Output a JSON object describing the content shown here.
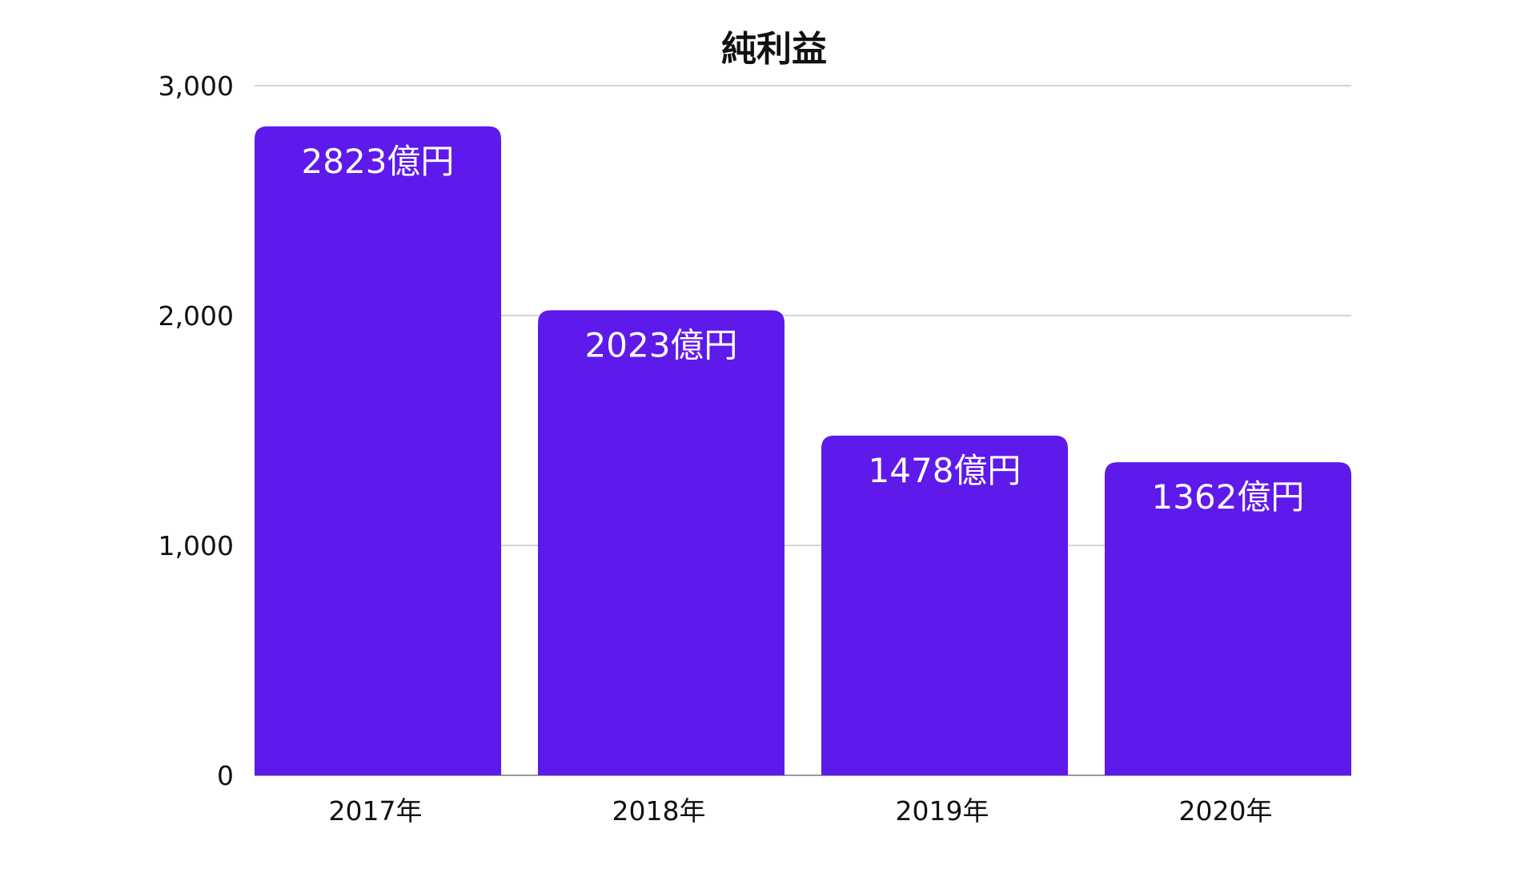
{
  "chart_data": {
    "type": "bar",
    "title": "純利益",
    "xlabel": "",
    "ylabel": "",
    "categories": [
      "2017年",
      "2018年",
      "2019年",
      "2020年"
    ],
    "values": [
      2823,
      2023,
      1478,
      1362
    ],
    "data_labels": [
      "2823億円",
      "2023億円",
      "1478億円",
      "1362億円"
    ],
    "ylim": [
      0,
      3000
    ],
    "yticks": [
      0,
      1000,
      2000,
      3000
    ],
    "ytick_labels": [
      "0",
      "1,000",
      "2,000",
      "3,000"
    ],
    "grid": true,
    "legend": "none",
    "bar_color": "#5e19eb"
  }
}
